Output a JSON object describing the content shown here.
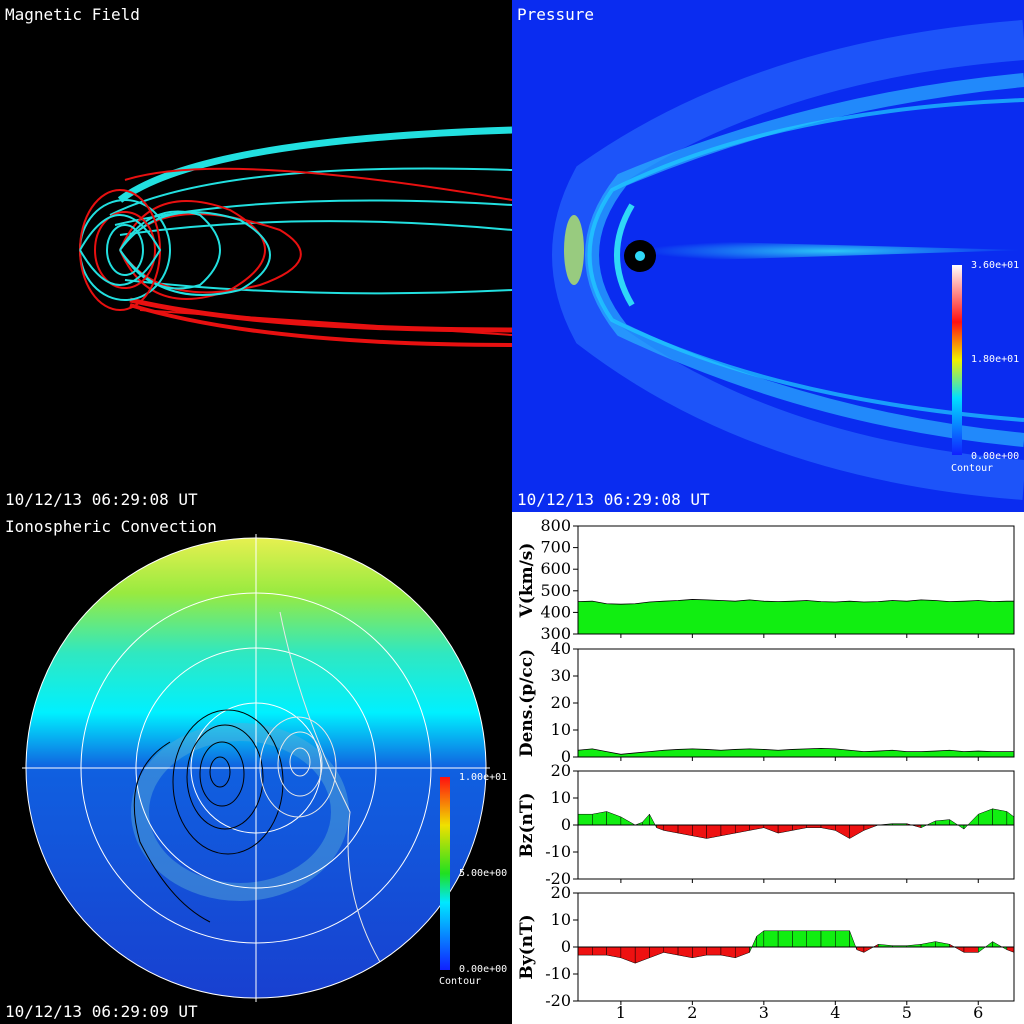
{
  "panels": {
    "magnetic": {
      "title": "Magnetic Field",
      "time": "10/12/13 06:29:08 UT"
    },
    "pressure": {
      "title": "Pressure",
      "time": "10/12/13 06:29:08 UT",
      "colorbar": {
        "max": "3.60e+01",
        "mid": "1.80e+01",
        "min": "0.00e+00",
        "caption": "Contour"
      }
    },
    "iono": {
      "title": "Ionospheric Convection",
      "time": "10/12/13 06:29:09 UT",
      "colorbar": {
        "max": "1.00e+01",
        "mid": "5.00e+00",
        "min": "0.00e+00",
        "caption": "Contour"
      }
    }
  },
  "colors": {
    "fill_positive": "#11ee11",
    "fill_negative": "#ee1111",
    "pressure_bg": "#0a2cf0"
  },
  "chart_data": [
    {
      "type": "area",
      "ylabel": "V(km/s)",
      "ylim": [
        300,
        800
      ],
      "yticks": [
        300,
        400,
        500,
        600,
        700,
        800
      ],
      "x": [
        0.4,
        0.6,
        0.8,
        1.0,
        1.2,
        1.4,
        1.6,
        1.8,
        2.0,
        2.2,
        2.4,
        2.6,
        2.8,
        3.0,
        3.2,
        3.4,
        3.6,
        3.8,
        4.0,
        4.2,
        4.4,
        4.6,
        4.8,
        5.0,
        5.2,
        5.4,
        5.6,
        5.8,
        6.0,
        6.2,
        6.4,
        6.5
      ],
      "values": [
        450,
        452,
        440,
        438,
        440,
        448,
        452,
        455,
        460,
        458,
        455,
        452,
        458,
        452,
        450,
        452,
        455,
        450,
        448,
        452,
        448,
        450,
        455,
        452,
        458,
        455,
        450,
        452,
        455,
        450,
        452,
        452
      ]
    },
    {
      "type": "area",
      "ylabel": "Dens.(p/cc)",
      "ylim": [
        0,
        40
      ],
      "yticks": [
        0,
        10,
        20,
        30,
        40
      ],
      "x": [
        0.4,
        0.6,
        0.8,
        1.0,
        1.2,
        1.4,
        1.6,
        1.8,
        2.0,
        2.2,
        2.4,
        2.6,
        2.8,
        3.0,
        3.2,
        3.4,
        3.6,
        3.8,
        4.0,
        4.2,
        4.4,
        4.6,
        4.8,
        5.0,
        5.2,
        5.4,
        5.6,
        5.8,
        6.0,
        6.2,
        6.4,
        6.5
      ],
      "values": [
        2.5,
        3,
        2,
        1,
        1.5,
        2,
        2.5,
        2.8,
        3,
        2.8,
        2.5,
        2.8,
        3,
        2.8,
        2.5,
        2.8,
        3,
        3.2,
        3,
        2.5,
        2,
        2.2,
        2.5,
        2,
        2,
        2.2,
        2.5,
        2,
        2.2,
        2,
        2,
        2
      ]
    },
    {
      "type": "area",
      "ylabel": "Bz(nT)",
      "ylim": [
        -20,
        20
      ],
      "yticks": [
        -20,
        -10,
        0,
        10,
        20
      ],
      "x": [
        0.4,
        0.6,
        0.8,
        1.0,
        1.2,
        1.3,
        1.4,
        1.5,
        1.6,
        1.8,
        2.0,
        2.2,
        2.4,
        2.6,
        2.8,
        3.0,
        3.2,
        3.4,
        3.6,
        3.8,
        4.0,
        4.2,
        4.4,
        4.6,
        4.8,
        5.0,
        5.2,
        5.4,
        5.6,
        5.8,
        6.0,
        6.2,
        6.4,
        6.5
      ],
      "values": [
        4,
        4,
        5,
        3,
        0,
        1,
        4,
        -1,
        -2,
        -3,
        -4,
        -5,
        -4,
        -3,
        -2,
        -1,
        -3,
        -2,
        -1,
        -1,
        -2,
        -5,
        -2,
        0,
        0.5,
        0.5,
        -1,
        1.5,
        2,
        -1.5,
        4,
        6,
        5,
        3
      ]
    },
    {
      "type": "area",
      "ylabel": "By(nT)",
      "ylim": [
        -20,
        20
      ],
      "yticks": [
        -20,
        -10,
        0,
        10,
        20
      ],
      "x": [
        0.4,
        0.6,
        0.8,
        1.0,
        1.2,
        1.4,
        1.6,
        1.8,
        2.0,
        2.2,
        2.4,
        2.6,
        2.8,
        2.9,
        3.0,
        3.2,
        3.4,
        3.6,
        3.8,
        4.0,
        4.2,
        4.3,
        4.4,
        4.6,
        4.8,
        5.0,
        5.2,
        5.4,
        5.6,
        5.8,
        6.0,
        6.2,
        6.4,
        6.5
      ],
      "values": [
        -3,
        -3,
        -3,
        -4,
        -6,
        -4,
        -2,
        -3,
        -4,
        -3,
        -3,
        -4,
        -2,
        4,
        6,
        6,
        6,
        6,
        6,
        6,
        6,
        -1,
        -2,
        1,
        0.5,
        0.5,
        1,
        2,
        1,
        -2,
        -2,
        2,
        -1,
        -2
      ],
      "xticks": [
        1,
        2,
        3,
        4,
        5,
        6
      ],
      "xlim": [
        0.4,
        6.5
      ]
    }
  ]
}
